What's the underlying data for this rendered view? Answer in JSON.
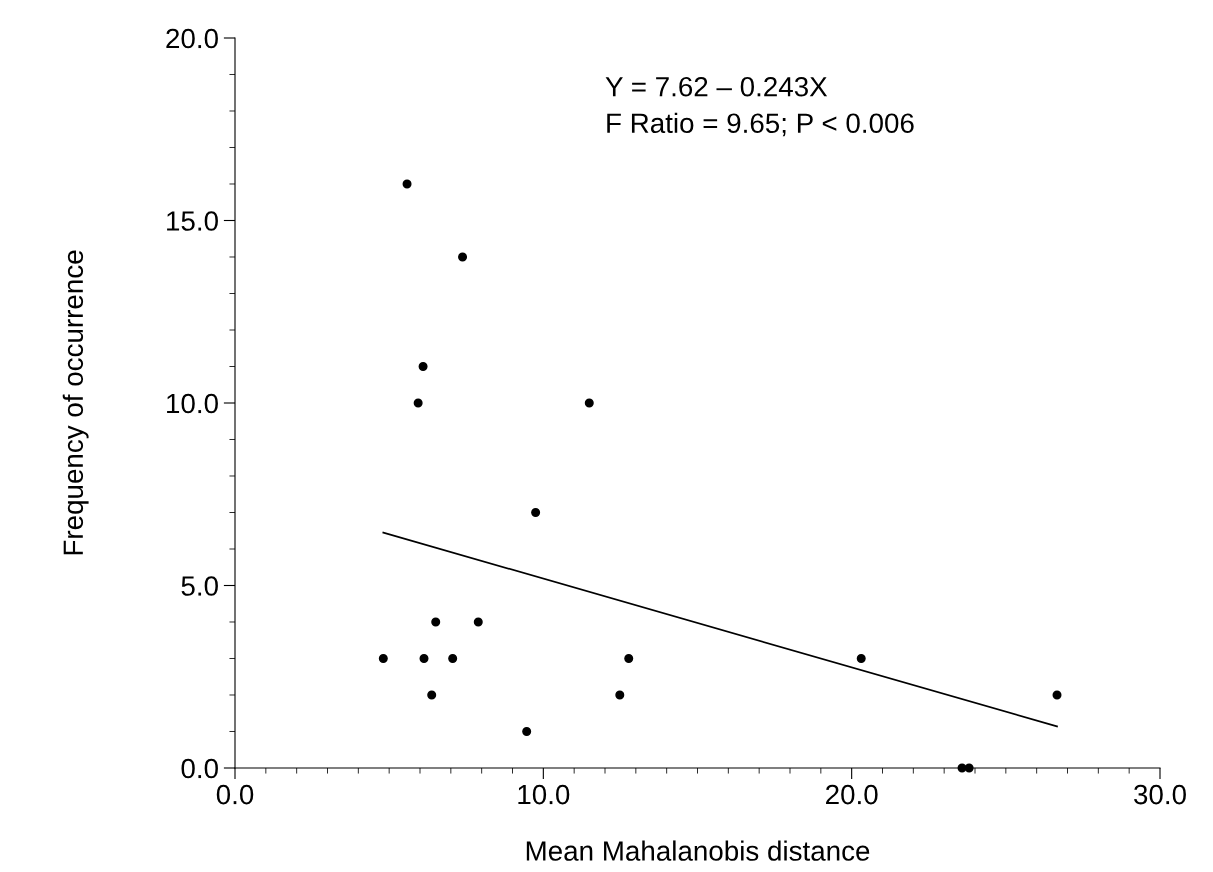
{
  "chart_data": {
    "type": "scatter",
    "xlabel": "Mean Mahalanobis distance",
    "ylabel": "Frequency of occurrence",
    "annotations": [
      "Y = 7.62 – 0.243X",
      "F Ratio = 9.65; P < 0.006"
    ],
    "series": [
      {
        "color": "#000000",
        "marker": "circle",
        "x": [
          4.81,
          5.58,
          5.94,
          6.1,
          6.13,
          6.38,
          6.51,
          7.06,
          7.38,
          7.89,
          9.46,
          9.75,
          11.49,
          12.48,
          12.77,
          20.31,
          23.58,
          23.81,
          26.66
        ],
        "values": [
          3,
          16,
          10,
          11,
          3,
          2,
          4,
          3,
          14,
          4,
          1,
          7,
          10,
          2,
          3,
          3,
          0,
          0,
          2
        ]
      },
      {
        "type": "line",
        "color": "#000000",
        "marker": "none",
        "line_style": "solid",
        "x": [
          4.81,
          26.66
        ],
        "values": [
          6.45,
          1.14
        ]
      }
    ],
    "xlim": [
      0,
      30
    ],
    "ylim": [
      0,
      20
    ],
    "xticks": [
      {
        "value": 0,
        "label": "0.0"
      },
      {
        "value": 10,
        "label": "10.0"
      },
      {
        "value": 20,
        "label": "20.0"
      },
      {
        "value": 30,
        "label": "30.0"
      }
    ],
    "yticks": [
      {
        "value": 0,
        "label": "0.0"
      },
      {
        "value": 5,
        "label": "5.0"
      },
      {
        "value": 10,
        "label": "10.0"
      },
      {
        "value": 15,
        "label": "15.0"
      },
      {
        "value": 20,
        "label": "20.0"
      }
    ],
    "grid": false,
    "legend": false
  }
}
